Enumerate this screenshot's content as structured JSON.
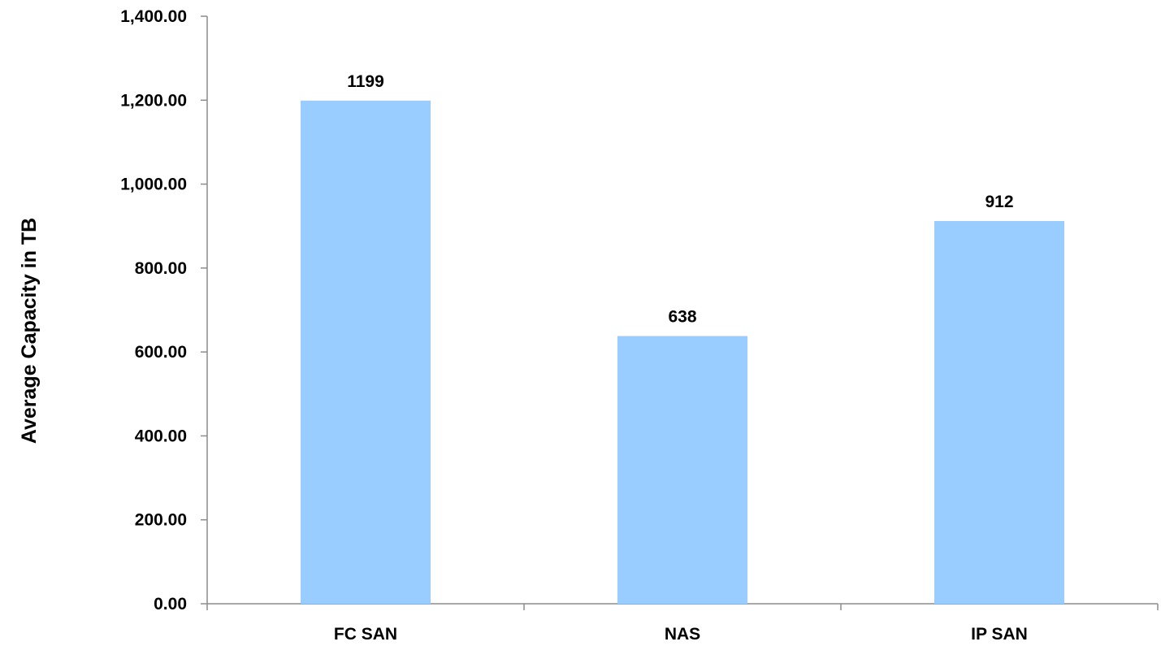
{
  "chart_data": {
    "type": "bar",
    "categories": [
      "FC SAN",
      "NAS",
      "IP SAN"
    ],
    "values": [
      1199,
      638,
      912
    ],
    "data_labels": [
      "1199",
      "638",
      "912"
    ],
    "title": "",
    "xlabel": "",
    "ylabel": "Average Capacity in TB",
    "ylim": [
      0,
      1400
    ],
    "y_ticks": [
      0,
      200,
      400,
      600,
      800,
      1000,
      1200,
      1400
    ],
    "y_tick_labels": [
      "0.00",
      "200.00",
      "400.00",
      "600.00",
      "800.00",
      "1,000.00",
      "1,200.00",
      "1,400.00"
    ],
    "grid": false,
    "legend": "none",
    "colors": {
      "bar": "#99CCFF",
      "axis": "#8C8C8C",
      "text": "#000000"
    }
  }
}
